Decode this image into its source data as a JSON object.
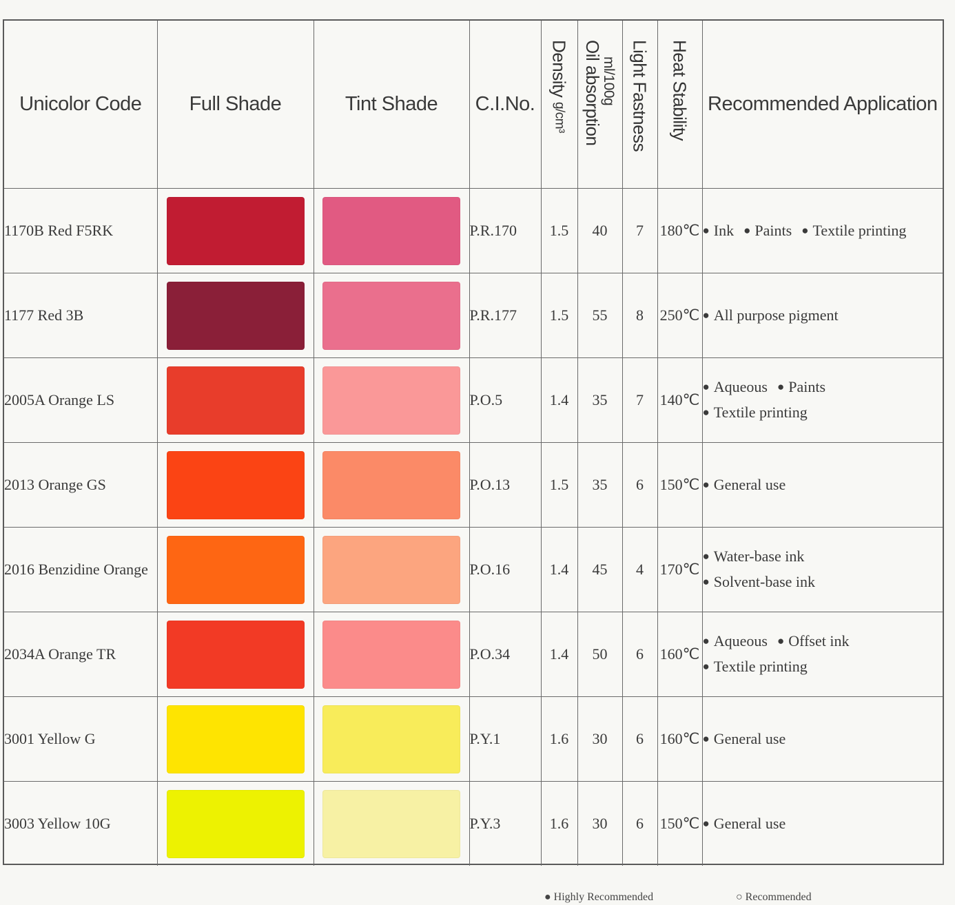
{
  "headers": {
    "code": "Unicolor Code",
    "full": "Full Shade",
    "tint": "Tint Shade",
    "cino": "C.I.No.",
    "density": "Density",
    "density_unit": "g/cm³",
    "oil": "Oil absorption",
    "oil_unit": "ml/100g",
    "light": "Light Fastness",
    "heat": "Heat Stability",
    "app": "Recommended Application"
  },
  "rows": [
    {
      "code": "1170B Red F5RK",
      "full": "#c11c32",
      "tint": "#e15a82",
      "cino": "P.R.170",
      "density": "1.5",
      "oil": "40",
      "light": "7",
      "heat": "180℃",
      "apps": [
        [
          "Ink",
          "Paints",
          "Textile printing"
        ]
      ]
    },
    {
      "code": "1177 Red 3B",
      "full": "#8a1f38",
      "tint": "#ea6f8d",
      "cino": "P.R.177",
      "density": "1.5",
      "oil": "55",
      "light": "8",
      "heat": "250℃",
      "apps": [
        [
          "All purpose pigment"
        ]
      ]
    },
    {
      "code": "2005A Orange LS",
      "full": "#e83d2b",
      "tint": "#fa9898",
      "cino": "P.O.5",
      "density": "1.4",
      "oil": "35",
      "light": "7",
      "heat": "140℃",
      "apps": [
        [
          "Aqueous",
          "Paints"
        ],
        [
          "Textile printing"
        ]
      ]
    },
    {
      "code": "2013 Orange GS",
      "full": "#fb4414",
      "tint": "#fb8a67",
      "cino": "P.O.13",
      "density": "1.5",
      "oil": "35",
      "light": "6",
      "heat": "150℃",
      "apps": [
        [
          "General use"
        ]
      ]
    },
    {
      "code": "2016 Benzidine Orange",
      "full": "#fe6613",
      "tint": "#fca57f",
      "cino": "P.O.16",
      "density": "1.4",
      "oil": "45",
      "light": "4",
      "heat": "170℃",
      "apps": [
        [
          "Water-base ink"
        ],
        [
          "Solvent-base ink"
        ]
      ]
    },
    {
      "code": "2034A Orange TR",
      "full": "#f23a25",
      "tint": "#fb8b8a",
      "cino": "P.O.34",
      "density": "1.4",
      "oil": "50",
      "light": "6",
      "heat": "160℃",
      "apps": [
        [
          "Aqueous",
          "Offset ink"
        ],
        [
          "Textile printing"
        ]
      ]
    },
    {
      "code": "3001 Yellow G",
      "full": "#fee401",
      "tint": "#f8ec5a",
      "cino": "P.Y.1",
      "density": "1.6",
      "oil": "30",
      "light": "6",
      "heat": "160℃",
      "apps": [
        [
          "General use"
        ]
      ]
    },
    {
      "code": "3003 Yellow 10G",
      "full": "#edf201",
      "tint": "#f7f1a4",
      "cino": "P.Y.3",
      "density": "1.6",
      "oil": "30",
      "light": "6",
      "heat": "150℃",
      "apps": [
        [
          "General use"
        ]
      ]
    }
  ],
  "legend": {
    "highly": "Highly Recommended",
    "recommended": "Recommended",
    "highly_symbol": "●",
    "recommended_symbol": "○"
  }
}
